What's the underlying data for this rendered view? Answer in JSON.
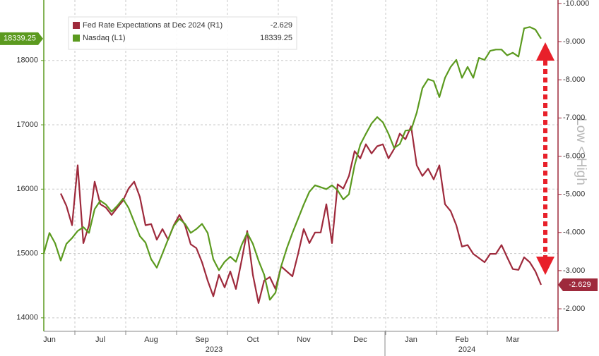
{
  "chart_data": {
    "type": "line",
    "annotation": "Low < High",
    "legend": "upper left",
    "grid": true,
    "year_labels": [
      "2023",
      "2024"
    ],
    "categories": [
      null,
      "Jun",
      null,
      null,
      null,
      null,
      null,
      null,
      null,
      null,
      "Jul",
      null,
      null,
      null,
      null,
      null,
      null,
      null,
      null,
      "Aug",
      null,
      null,
      null,
      null,
      null,
      null,
      null,
      null,
      "Sep",
      null,
      null,
      null,
      null,
      null,
      null,
      null,
      null,
      "Oct",
      null,
      null,
      null,
      null,
      null,
      null,
      null,
      null,
      "Nov",
      null,
      null,
      null,
      null,
      null,
      null,
      null,
      null,
      null,
      "Dec",
      null,
      null,
      null,
      null,
      null,
      null,
      null,
      null,
      "Jan",
      null,
      null,
      null,
      null,
      null,
      null,
      null,
      null,
      "Feb",
      null,
      null,
      null,
      null,
      null,
      null,
      null,
      null,
      "Mar",
      null,
      null,
      null,
      null,
      null
    ],
    "ylim": [
      13790,
      18940
    ],
    "yticks": [
      14000,
      15000,
      16000,
      17000,
      18000
    ],
    "y2lim": [
      -1.41,
      -10.09
    ],
    "y2ticks": [
      {
        "value": -10,
        "label": "-10.000"
      },
      {
        "value": -9,
        "label": "-9.000"
      },
      {
        "value": -8,
        "label": "-8.000"
      },
      {
        "value": -7,
        "label": "-7.000"
      },
      {
        "value": -6,
        "label": "-6.000"
      },
      {
        "value": -5,
        "label": "-5.000"
      },
      {
        "value": -4,
        "label": "-4.000"
      },
      {
        "value": -3,
        "label": "-3.000"
      },
      {
        "value": -2,
        "label": "-2.000"
      }
    ],
    "series": [
      {
        "name": "Fed Rate Expectations at Dec 2024 (R1)",
        "color": "#9e2a3c",
        "axis": "y2",
        "values": [
          null,
          null,
          null,
          -5.02,
          -4.7,
          -4.19,
          -5.76,
          -3.72,
          -4.19,
          -5.33,
          -4.74,
          -4.65,
          -4.46,
          -4.65,
          -4.83,
          -5.15,
          -5.33,
          -4.93,
          -4.19,
          -4.22,
          -3.81,
          -4.09,
          -3.81,
          -4.19,
          -4.46,
          -4.19,
          -3.69,
          -3.59,
          -3.22,
          -2.74,
          -2.33,
          -2.89,
          -2.56,
          -2.98,
          -2.52,
          -3.26,
          -4.04,
          -2.89,
          -2.15,
          -2.74,
          -2.83,
          -2.52,
          -3.11,
          -2.98,
          -2.85,
          -3.44,
          -4.09,
          -3.72,
          -4.0,
          -4.0,
          -4.74,
          -3.72,
          -5.26,
          -5.15,
          -5.48,
          -6.13,
          -5.94,
          -6.31,
          -6.07,
          -6.26,
          -6.31,
          -5.94,
          -6.19,
          -6.59,
          -6.44,
          -6.78,
          -5.76,
          -5.48,
          -5.67,
          -5.39,
          -5.76,
          -4.74,
          -4.56,
          -4.19,
          -3.63,
          -3.67,
          -3.44,
          -3.33,
          -3.22,
          -3.44,
          -3.44,
          -3.67,
          -3.35,
          -3.04,
          -3.02,
          -3.35,
          -3.22,
          -2.98,
          -2.629
        ]
      },
      {
        "name": "Nasdaq (L1)",
        "color": "#5b9a1f",
        "values": [
          15000,
          15320,
          15160,
          14890,
          15150,
          15240,
          15350,
          15410,
          15320,
          15690,
          15820,
          15760,
          15650,
          15740,
          15850,
          15710,
          15490,
          15270,
          15170,
          14910,
          14780,
          15000,
          15220,
          15430,
          15540,
          15460,
          15320,
          15380,
          15460,
          15320,
          14910,
          14740,
          14870,
          14950,
          14870,
          15130,
          15320,
          15150,
          14890,
          14670,
          14280,
          14390,
          14800,
          15080,
          15320,
          15540,
          15760,
          15960,
          16060,
          16030,
          16000,
          16060,
          15980,
          15840,
          15920,
          16370,
          16690,
          16860,
          17020,
          17120,
          17040,
          16860,
          16640,
          16700,
          16910,
          16920,
          17190,
          17570,
          17710,
          17680,
          17430,
          17730,
          17900,
          18010,
          17730,
          17900,
          17730,
          18040,
          18010,
          18150,
          18170,
          18170,
          18080,
          18120,
          18060,
          18500,
          18520,
          18480,
          18339.25
        ]
      }
    ]
  }
}
